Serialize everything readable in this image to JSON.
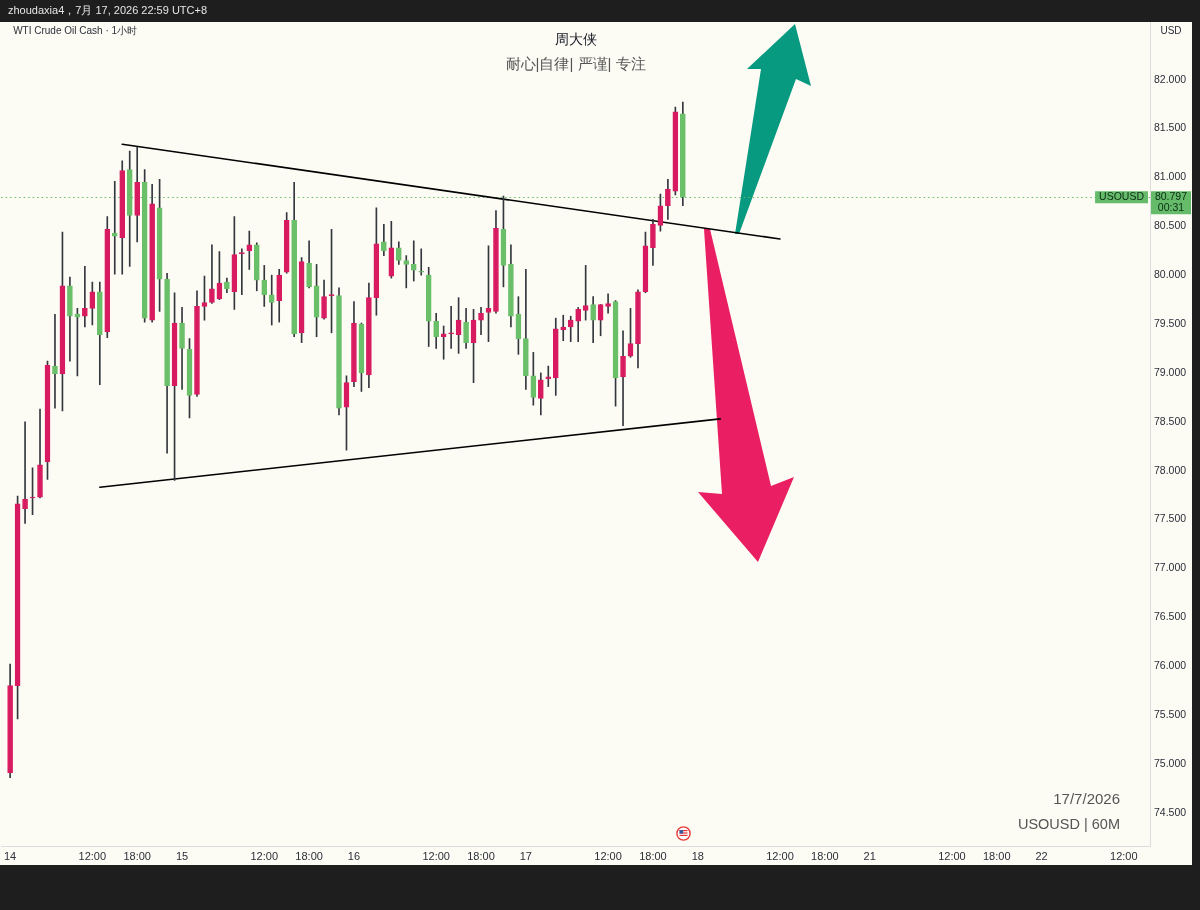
{
  "chart_data": {
    "type": "candlestick",
    "title": "周大侠",
    "subtitle": "耐心|自律| 严谨| 专注",
    "ylabel": "USD",
    "annotations": [
      "zhoudaxia4，7月 17, 2026 22:59 UTC+8",
      "WTI Crude Oil Cash · 1小时",
      "17/7/2026",
      "USOUSD | 60M",
      {
        "text": "USOUSD",
        "y": 80.797
      }
    ],
    "categories": [
      "14",
      null,
      null,
      null,
      null,
      null,
      null,
      null,
      null,
      null,
      null,
      "12:00",
      null,
      null,
      null,
      null,
      null,
      "18:00",
      null,
      null,
      null,
      null,
      null,
      "15",
      null,
      null,
      null,
      null,
      null,
      null,
      null,
      null,
      null,
      null,
      "12:00",
      null,
      null,
      null,
      null,
      null,
      "18:00",
      null,
      null,
      null,
      null,
      null,
      "16",
      null,
      null,
      null,
      null,
      null,
      null,
      null,
      null,
      null,
      null,
      "12:00",
      null,
      null,
      null,
      null,
      null,
      "18:00",
      null,
      null,
      null,
      null,
      null,
      "17",
      null,
      null,
      null,
      null,
      null,
      null,
      null,
      null,
      null,
      null,
      "12:00",
      null,
      null,
      null,
      null,
      null,
      "18:00",
      null,
      null,
      null,
      null,
      null,
      "18",
      null,
      null,
      null,
      null,
      null,
      null,
      null,
      null,
      null,
      null,
      "12:00",
      null,
      null,
      null,
      null,
      null,
      "18:00",
      null,
      null,
      null,
      null,
      null,
      "21",
      null,
      null,
      null,
      null,
      null,
      null,
      null,
      null,
      null,
      null,
      "12:00",
      null,
      null,
      null,
      null,
      null,
      "18:00",
      null,
      null,
      null,
      null,
      null,
      "22",
      null,
      null,
      null,
      null,
      null,
      null,
      null,
      null,
      null,
      null,
      "12:00",
      null,
      null,
      null
    ],
    "ohlc": [
      [
        74.91,
        76.02,
        74.86,
        75.8
      ],
      [
        75.8,
        77.74,
        75.46,
        77.66
      ],
      [
        77.61,
        78.5,
        77.46,
        77.71
      ],
      [
        77.72,
        78.03,
        77.55,
        77.73
      ],
      [
        77.73,
        78.63,
        77.72,
        78.06
      ],
      [
        78.09,
        79.12,
        77.91,
        79.08
      ],
      [
        79.07,
        79.6,
        78.64,
        78.99
      ],
      [
        78.99,
        80.44,
        78.61,
        79.89
      ],
      [
        79.89,
        79.98,
        79.12,
        79.58
      ],
      [
        79.6,
        79.66,
        78.97,
        79.57
      ],
      [
        79.58,
        80.09,
        79.47,
        79.66
      ],
      [
        79.66,
        79.93,
        79.49,
        79.83
      ],
      [
        79.83,
        79.93,
        78.88,
        79.39
      ],
      [
        79.42,
        80.6,
        79.36,
        80.47
      ],
      [
        80.43,
        80.96,
        80.01,
        80.4
      ],
      [
        80.38,
        81.17,
        80.01,
        81.07
      ],
      [
        81.08,
        81.27,
        80.09,
        80.61
      ],
      [
        80.61,
        81.31,
        80.34,
        80.95
      ],
      [
        80.95,
        81.08,
        79.52,
        79.56
      ],
      [
        79.54,
        80.93,
        79.52,
        80.73
      ],
      [
        80.69,
        80.98,
        79.63,
        79.96
      ],
      [
        79.96,
        80.02,
        78.18,
        78.87
      ],
      [
        78.87,
        79.82,
        77.9,
        79.51
      ],
      [
        79.51,
        79.67,
        78.83,
        79.25
      ],
      [
        79.24,
        79.35,
        78.54,
        78.77
      ],
      [
        78.78,
        79.84,
        78.76,
        79.68
      ],
      [
        79.68,
        79.99,
        79.54,
        79.72
      ],
      [
        79.72,
        80.31,
        79.71,
        79.86
      ],
      [
        79.76,
        80.24,
        79.75,
        79.92
      ],
      [
        79.93,
        79.97,
        79.82,
        79.86
      ],
      [
        79.83,
        80.6,
        79.65,
        80.21
      ],
      [
        80.22,
        80.27,
        79.8,
        80.23
      ],
      [
        80.25,
        80.45,
        80.06,
        80.31
      ],
      [
        80.31,
        80.33,
        79.84,
        79.95
      ],
      [
        79.95,
        80.1,
        79.68,
        79.8
      ],
      [
        79.8,
        80.0,
        79.49,
        79.72
      ],
      [
        79.74,
        80.06,
        79.52,
        80.0
      ],
      [
        80.03,
        80.64,
        80.02,
        80.56
      ],
      [
        80.56,
        80.95,
        79.37,
        79.4
      ],
      [
        79.41,
        80.18,
        79.31,
        80.14
      ],
      [
        80.12,
        80.35,
        79.87,
        79.88
      ],
      [
        79.89,
        80.11,
        79.37,
        79.57
      ],
      [
        79.56,
        79.95,
        79.55,
        79.78
      ],
      [
        79.79,
        80.47,
        79.41,
        79.8
      ],
      [
        79.79,
        79.87,
        78.57,
        78.64
      ],
      [
        78.65,
        78.97,
        78.21,
        78.9
      ],
      [
        78.91,
        79.73,
        78.86,
        79.51
      ],
      [
        79.5,
        79.51,
        78.81,
        79.0
      ],
      [
        78.98,
        79.92,
        78.85,
        79.77
      ],
      [
        79.77,
        80.69,
        79.59,
        80.32
      ],
      [
        80.34,
        80.52,
        80.2,
        80.25
      ],
      [
        79.99,
        80.55,
        79.97,
        80.28
      ],
      [
        80.28,
        80.34,
        80.11,
        80.15
      ],
      [
        80.15,
        80.2,
        79.87,
        80.11
      ],
      [
        80.11,
        80.35,
        79.94,
        80.05
      ],
      [
        80.04,
        80.27,
        80.0,
        80.03
      ],
      [
        80.0,
        80.08,
        79.27,
        79.53
      ],
      [
        79.53,
        79.61,
        79.25,
        79.37
      ],
      [
        79.37,
        79.48,
        79.14,
        79.4
      ],
      [
        79.4,
        79.68,
        79.25,
        79.41
      ],
      [
        79.39,
        79.77,
        79.2,
        79.54
      ],
      [
        79.52,
        79.66,
        79.25,
        79.31
      ],
      [
        79.31,
        79.65,
        78.9,
        79.54
      ],
      [
        79.54,
        79.67,
        79.39,
        79.61
      ],
      [
        79.62,
        80.3,
        79.32,
        79.66
      ],
      [
        79.63,
        80.66,
        79.61,
        80.48
      ],
      [
        80.47,
        80.81,
        79.88,
        80.1
      ],
      [
        80.11,
        80.31,
        79.47,
        79.58
      ],
      [
        79.6,
        79.78,
        79.19,
        79.35
      ],
      [
        79.35,
        80.06,
        78.83,
        78.97
      ],
      [
        78.97,
        79.21,
        78.67,
        78.75
      ],
      [
        78.74,
        79.0,
        78.57,
        78.93
      ],
      [
        78.94,
        79.07,
        78.86,
        78.96
      ],
      [
        78.95,
        79.56,
        78.77,
        79.45
      ],
      [
        79.44,
        79.59,
        79.33,
        79.47
      ],
      [
        79.47,
        79.58,
        79.32,
        79.54
      ],
      [
        79.53,
        79.67,
        79.32,
        79.65
      ],
      [
        79.64,
        80.1,
        79.54,
        79.69
      ],
      [
        79.7,
        79.78,
        79.31,
        79.54
      ],
      [
        79.54,
        79.7,
        79.38,
        79.7
      ],
      [
        79.68,
        79.81,
        79.61,
        79.71
      ],
      [
        79.73,
        79.74,
        78.66,
        78.95
      ],
      [
        78.96,
        79.43,
        78.46,
        79.17
      ],
      [
        79.17,
        79.66,
        79.16,
        79.3
      ],
      [
        79.3,
        79.85,
        79.05,
        79.83
      ],
      [
        79.83,
        80.44,
        79.82,
        80.3
      ],
      [
        80.28,
        80.57,
        80.1,
        80.52
      ],
      [
        80.51,
        80.83,
        80.45,
        80.71
      ],
      [
        80.71,
        80.98,
        80.57,
        80.88
      ],
      [
        80.86,
        81.72,
        80.82,
        81.67
      ],
      [
        81.65,
        81.77,
        80.71,
        80.797
      ],
      null,
      null,
      null,
      null,
      null,
      null,
      null,
      null,
      null,
      null,
      null,
      null,
      null,
      null,
      null,
      null,
      null,
      null,
      null,
      null,
      null,
      null,
      null,
      null,
      null,
      null,
      null,
      null,
      null,
      null,
      null,
      null,
      null,
      null,
      null,
      null,
      null,
      null,
      null,
      null,
      null,
      null,
      null,
      null,
      null,
      null,
      null,
      null,
      null,
      null,
      null,
      null,
      null,
      null,
      null,
      null,
      null,
      null,
      null,
      null,
      null,
      null
    ],
    "colors": [
      "#d81b60",
      "#d81b60",
      "#d81b60",
      "#d81b60",
      "#d81b60",
      "#d81b60",
      "#6abf69",
      "#d81b60",
      "#6abf69",
      "#6abf69",
      "#d81b60",
      "#d81b60",
      "#6abf69",
      "#d81b60",
      "#6abf69",
      "#d81b60",
      "#6abf69",
      "#d81b60",
      "#6abf69",
      "#d81b60",
      "#6abf69",
      "#6abf69",
      "#d81b60",
      "#6abf69",
      "#6abf69",
      "#d81b60",
      "#d81b60",
      "#d81b60",
      "#d81b60",
      "#6abf69",
      "#d81b60",
      "#d81b60",
      "#d81b60",
      "#6abf69",
      "#6abf69",
      "#6abf69",
      "#d81b60",
      "#d81b60",
      "#6abf69",
      "#d81b60",
      "#6abf69",
      "#6abf69",
      "#d81b60",
      "#d81b60",
      "#6abf69",
      "#d81b60",
      "#d81b60",
      "#6abf69",
      "#d81b60",
      "#d81b60",
      "#6abf69",
      "#d81b60",
      "#6abf69",
      "#6abf69",
      "#6abf69",
      "#6abf69",
      "#6abf69",
      "#6abf69",
      "#d81b60",
      "#d81b60",
      "#d81b60",
      "#6abf69",
      "#d81b60",
      "#d81b60",
      "#d81b60",
      "#d81b60",
      "#6abf69",
      "#6abf69",
      "#6abf69",
      "#6abf69",
      "#6abf69",
      "#d81b60",
      "#d81b60",
      "#d81b60",
      "#d81b60",
      "#d81b60",
      "#d81b60",
      "#d81b60",
      "#6abf69",
      "#d81b60",
      "#d81b60",
      "#6abf69",
      "#d81b60",
      "#d81b60",
      "#d81b60",
      "#d81b60",
      "#d81b60",
      "#d81b60",
      "#d81b60",
      "#d81b60",
      "#6abf69",
      null,
      null,
      null,
      null,
      null,
      null,
      null,
      null,
      null,
      null,
      null,
      null,
      null,
      null,
      null,
      null,
      null,
      null,
      null,
      null,
      null,
      null,
      null,
      null,
      null,
      null,
      null,
      null,
      null,
      null,
      null,
      null,
      null,
      null,
      null,
      null,
      null,
      null,
      null,
      null,
      null,
      null,
      null,
      null,
      null,
      null,
      null,
      null,
      null,
      null,
      null,
      null,
      null,
      null,
      null,
      null,
      null,
      null,
      null,
      null,
      null,
      null
    ],
    "series": [
      {
        "type": "line",
        "color": "#000000",
        "values": [
          null,
          null,
          null,
          null,
          null,
          null,
          null,
          null,
          null,
          null,
          null,
          null,
          null,
          null,
          null,
          81.34,
          null,
          null,
          null,
          null,
          null,
          null,
          null,
          null,
          null,
          null,
          null,
          null,
          null,
          null,
          null,
          null,
          null,
          null,
          null,
          null,
          null,
          null,
          null,
          null,
          null,
          null,
          null,
          null,
          null,
          null,
          null,
          null,
          null,
          null,
          null,
          null,
          null,
          null,
          null,
          null,
          null,
          null,
          null,
          null,
          null,
          null,
          null,
          null,
          null,
          null,
          null,
          null,
          null,
          null,
          null,
          null,
          null,
          null,
          null,
          null,
          null,
          null,
          null,
          null,
          null,
          null,
          null,
          null,
          null,
          null,
          null,
          null,
          null,
          null,
          null,
          null,
          null,
          null,
          null,
          null,
          null,
          null,
          null,
          null,
          null,
          null,
          null,
          80.37,
          null,
          null,
          null,
          null,
          null,
          null,
          null,
          null,
          null,
          null,
          null,
          null,
          null,
          null,
          null,
          null,
          null,
          null,
          null,
          null,
          null,
          null,
          null,
          null,
          null,
          null,
          null,
          null,
          null,
          null,
          null,
          null,
          null,
          null,
          null,
          null,
          null,
          null,
          null,
          null,
          null,
          null,
          null,
          null,
          null,
          null,
          null,
          null,
          null
        ]
      },
      {
        "type": "line",
        "color": "#000000",
        "values": [
          null,
          null,
          null,
          null,
          null,
          null,
          null,
          null,
          null,
          null,
          null,
          null,
          77.83,
          null,
          null,
          null,
          null,
          null,
          null,
          null,
          null,
          null,
          null,
          null,
          null,
          null,
          null,
          null,
          null,
          null,
          null,
          null,
          null,
          null,
          null,
          null,
          null,
          null,
          null,
          null,
          null,
          null,
          null,
          null,
          null,
          null,
          null,
          null,
          null,
          null,
          null,
          null,
          null,
          null,
          null,
          null,
          null,
          null,
          null,
          null,
          null,
          null,
          null,
          null,
          null,
          null,
          null,
          null,
          null,
          null,
          null,
          null,
          null,
          null,
          null,
          null,
          null,
          null,
          null,
          null,
          null,
          null,
          null,
          null,
          null,
          null,
          null,
          null,
          null,
          null,
          null,
          null,
          null,
          null,
          null,
          78.53,
          null,
          null,
          null,
          null,
          null,
          null,
          null,
          null,
          null,
          null,
          null,
          null,
          null,
          null,
          null,
          null,
          null,
          null,
          null,
          null,
          null,
          null,
          null,
          null,
          null,
          null,
          null,
          null,
          null,
          null,
          null,
          null,
          null,
          null,
          null,
          null,
          null,
          null,
          null,
          null,
          null,
          null,
          null,
          null,
          null,
          null,
          null,
          null,
          null,
          null,
          null,
          null,
          null,
          null,
          null,
          null,
          null
        ]
      }
    ],
    "ref_lines": [
      {
        "axis": "y",
        "value": 80.797,
        "label": "80.797\n00:31",
        "color": "#66bb6a",
        "line_style": "dotted"
      }
    ],
    "ylim": [
      74.16,
      82.59
    ],
    "yticks": [
      {
        "value": 74.5,
        "label": "74.500"
      },
      {
        "value": 75,
        "label": "75.000"
      },
      {
        "value": 75.5,
        "label": "75.500"
      },
      {
        "value": 76,
        "label": "76.000"
      },
      {
        "value": 76.5,
        "label": "76.500"
      },
      {
        "value": 77,
        "label": "77.000"
      },
      {
        "value": 77.5,
        "label": "77.500"
      },
      {
        "value": 78,
        "label": "78.000"
      },
      {
        "value": 78.5,
        "label": "78.500"
      },
      {
        "value": 79,
        "label": "79.000"
      },
      {
        "value": 79.5,
        "label": "79.500"
      },
      {
        "value": 80,
        "label": "80.000"
      },
      {
        "value": 80.5,
        "label": "80.500"
      },
      {
        "value": 81,
        "label": "81.000"
      },
      {
        "value": 81.5,
        "label": "81.500"
      },
      {
        "value": 82,
        "label": "82.000"
      }
    ]
  }
}
